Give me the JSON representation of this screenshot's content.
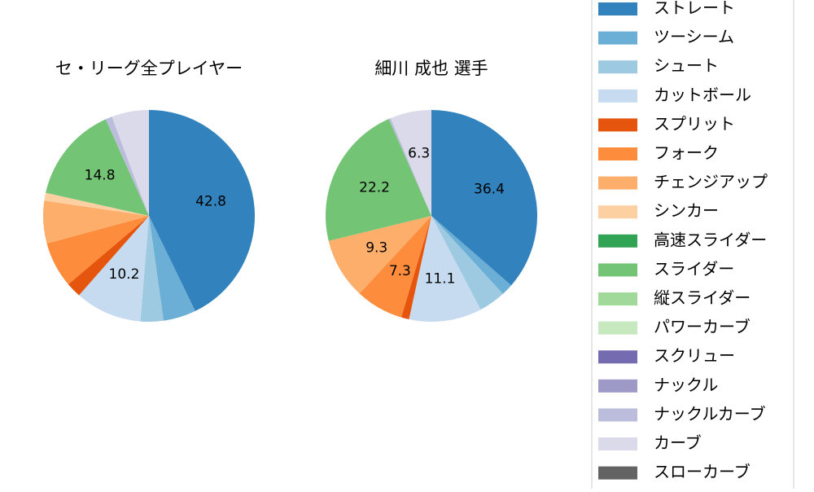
{
  "chart_data": [
    {
      "type": "pie",
      "title": "セ・リーグ全プレイヤー",
      "categories": [
        "ストレート",
        "ツーシーム",
        "シュート",
        "カットボール",
        "スプリット",
        "フォーク",
        "チェンジアップ",
        "シンカー",
        "高速スライダー",
        "スライダー",
        "縦スライダー",
        "パワーカーブ",
        "スクリュー",
        "ナックル",
        "ナックルカーブ",
        "カーブ",
        "スローカーブ"
      ],
      "colors": [
        "#3182bd",
        "#6baed6",
        "#9ecae1",
        "#c6dbef",
        "#e6550d",
        "#fd8d3c",
        "#fdae6b",
        "#fdd0a2",
        "#31a354",
        "#74c476",
        "#a1d99b",
        "#c7e9c0",
        "#756bb1",
        "#9e9ac8",
        "#bcbddc",
        "#dadaeb",
        "#636363"
      ],
      "values": [
        42.8,
        5.0,
        3.5,
        10.2,
        2.3,
        7.0,
        6.5,
        1.2,
        0,
        14.8,
        0,
        0,
        0,
        0,
        1.0,
        5.7,
        0
      ],
      "value_labels": [
        "42.8",
        null,
        null,
        "10.2",
        null,
        null,
        null,
        null,
        null,
        "14.8",
        null,
        null,
        null,
        null,
        null,
        null,
        null
      ]
    },
    {
      "type": "pie",
      "title": "細川 成也  選手",
      "categories": [
        "ストレート",
        "ツーシーム",
        "シュート",
        "カットボール",
        "スプリット",
        "フォーク",
        "チェンジアップ",
        "シンカー",
        "高速スライダー",
        "スライダー",
        "縦スライダー",
        "パワーカーブ",
        "スクリュー",
        "ナックル",
        "ナックルカーブ",
        "カーブ",
        "スローカーブ"
      ],
      "colors": [
        "#3182bd",
        "#6baed6",
        "#9ecae1",
        "#c6dbef",
        "#e6550d",
        "#fd8d3c",
        "#fdae6b",
        "#fdd0a2",
        "#31a354",
        "#74c476",
        "#a1d99b",
        "#c7e9c0",
        "#756bb1",
        "#9e9ac8",
        "#bcbddc",
        "#dadaeb",
        "#636363"
      ],
      "values": [
        36.4,
        1.8,
        4.1,
        11.1,
        1.2,
        7.3,
        9.3,
        0,
        0,
        22.2,
        0,
        0,
        0,
        0,
        0.3,
        6.3,
        0
      ],
      "value_labels": [
        "36.4",
        null,
        null,
        "11.1",
        null,
        "7.3",
        "9.3",
        null,
        null,
        "22.2",
        null,
        null,
        null,
        null,
        null,
        "6.3",
        null
      ]
    }
  ]
}
